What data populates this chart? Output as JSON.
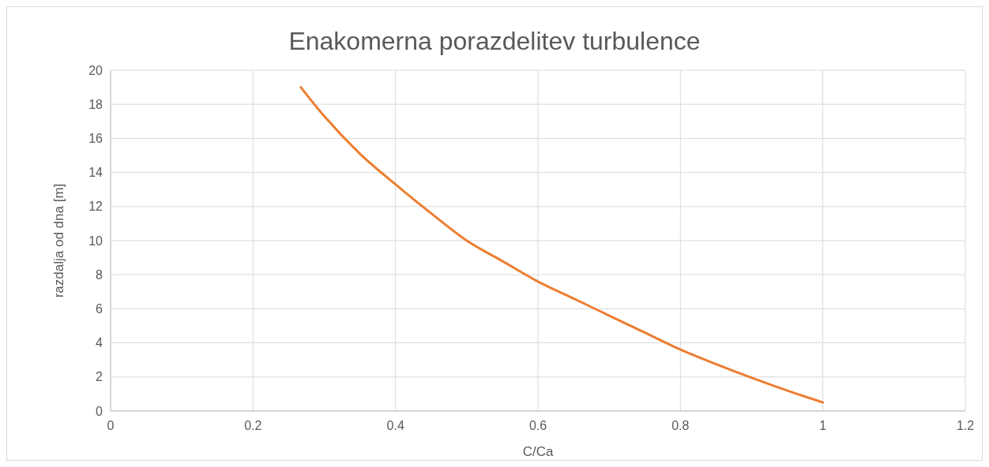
{
  "chart_data": {
    "type": "line",
    "title": "Enakomerna porazdelitev turbulence",
    "xlabel": "C/Ca",
    "ylabel": "razdalja od dna [m]",
    "series": [
      {
        "color": "#ed7d31",
        "x": [
          0.267,
          0.3,
          0.35,
          0.4,
          0.45,
          0.5,
          0.55,
          0.6,
          0.65,
          0.7,
          0.75,
          0.8,
          0.85,
          0.9,
          0.95,
          1.0
        ],
        "values": [
          19,
          17.3,
          15.1,
          13.3,
          11.6,
          10.0,
          8.8,
          7.6,
          6.6,
          5.6,
          4.6,
          3.6,
          2.75,
          1.95,
          1.2,
          0.5
        ]
      }
    ],
    "xlim": [
      0,
      1.2
    ],
    "xticks": [
      0,
      0.2,
      0.4,
      0.6,
      0.8,
      1,
      1.2
    ],
    "ylim": [
      0,
      20
    ],
    "yticks": [
      0,
      2,
      4,
      6,
      8,
      10,
      12,
      14,
      16,
      18,
      20
    ],
    "grid": true,
    "marker": "none",
    "line_style": "solid"
  }
}
